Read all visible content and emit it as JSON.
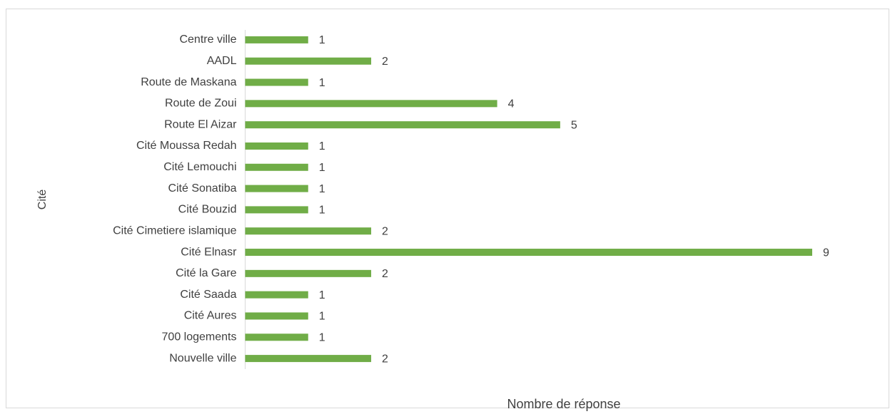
{
  "chart_data": {
    "type": "barh",
    "categories": [
      "Centre ville",
      "AADL",
      "Route de Maskana",
      "Route de Zoui",
      "Route El Aizar",
      "Cité Moussa Redah",
      "Cité Lemouchi",
      "Cité Sonatiba",
      "Cité Bouzid",
      "Cité Cimetiere islamique",
      "Cité Elnasr",
      "Cité la Gare",
      "Cité Saada",
      "Cité Aures",
      "700 logements",
      "Nouvelle ville"
    ],
    "values": [
      1,
      2,
      1,
      4,
      5,
      1,
      1,
      1,
      1,
      2,
      9,
      2,
      1,
      1,
      1,
      2
    ],
    "color": "#70ad47",
    "xlim": [
      0,
      9
    ],
    "xlabel": "Nombre de réponse",
    "ylabel": "Cité"
  }
}
